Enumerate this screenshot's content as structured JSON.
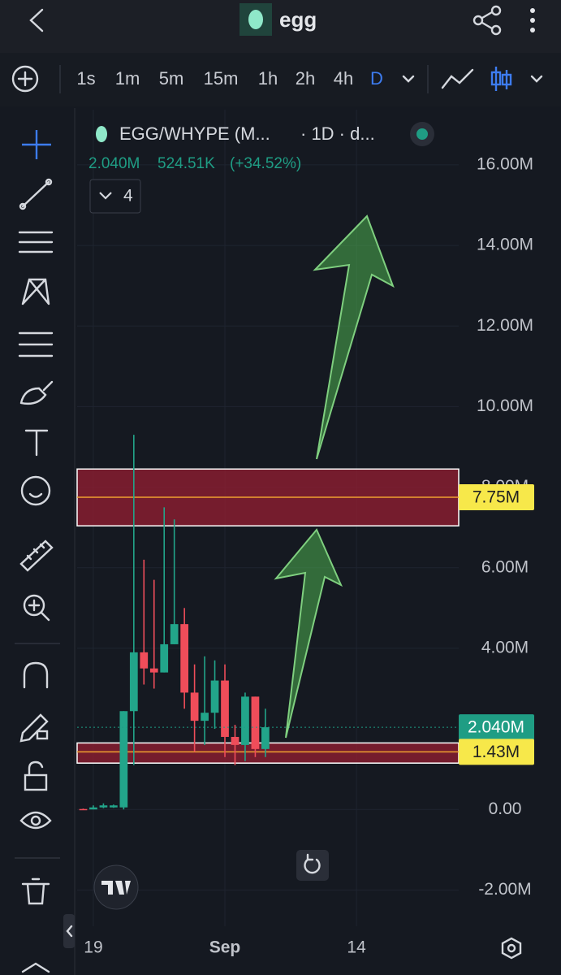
{
  "header": {
    "title": "egg"
  },
  "timeframes": [
    "1s",
    "1m",
    "5m",
    "15m",
    "1h",
    "2h",
    "4h",
    "D"
  ],
  "legend": {
    "symbol": "EGG/WHYPE (M...",
    "interval": "· 1D · d...",
    "price": "2.040M",
    "volume": "524.51K",
    "change": "(+34.52%)",
    "indicators": 4
  },
  "chart_data": {
    "type": "candlestick",
    "x": [
      -1,
      0,
      1,
      2,
      3,
      4,
      5,
      6,
      7,
      8,
      9,
      10,
      11,
      12,
      13,
      14,
      15,
      16,
      17
    ],
    "open": [
      0.01,
      0,
      0.05,
      0.05,
      0.05,
      2.44,
      3.9,
      3.5,
      3.4,
      4.1,
      4.6,
      2.9,
      2.2,
      2.4,
      3.2,
      1.8,
      1.6,
      2.8,
      1.5
    ],
    "high": [
      0.02,
      0.1,
      0.15,
      0.12,
      2.44,
      9.3,
      6.2,
      5.7,
      7.5,
      7.2,
      5.0,
      3.6,
      3.8,
      3.7,
      3.6,
      2.1,
      2.9,
      2.8,
      2.5
    ],
    "low": [
      0,
      0,
      0.03,
      0.04,
      0,
      1.1,
      3.1,
      3.0,
      3.4,
      4.1,
      2.5,
      1.43,
      1.6,
      2.0,
      1.3,
      1.1,
      1.2,
      1.3,
      1.3
    ],
    "close": [
      0,
      0.05,
      0.1,
      0.1,
      2.44,
      3.9,
      3.5,
      3.4,
      4.1,
      4.6,
      2.9,
      2.2,
      2.4,
      3.2,
      1.8,
      1.6,
      2.8,
      1.5,
      2.04
    ],
    "up_color": "#22a58a",
    "down_color": "#ef4d5a",
    "xlim": [
      -1.6,
      36.1
    ],
    "xticks": [
      {
        "value": 0,
        "label": "19"
      },
      {
        "value": 13,
        "label": "Sep"
      },
      {
        "value": 26,
        "label": "14"
      }
    ],
    "ylim": [
      -2.9,
      17.37
    ],
    "yticks": [
      {
        "value": -2,
        "label": "-2.00M"
      },
      {
        "value": 0,
        "label": "0.00"
      },
      {
        "value": 4,
        "label": "4.00M"
      },
      {
        "value": 6,
        "label": "6.00M"
      },
      {
        "value": 8,
        "label": "8.00M"
      },
      {
        "value": 10,
        "label": "10.00M"
      },
      {
        "value": 12,
        "label": "12.00M"
      },
      {
        "value": 14,
        "label": "14.00M"
      },
      {
        "value": 16,
        "label": "16.00M"
      }
    ],
    "grid": true,
    "zones": [
      {
        "from": 7.04,
        "to": 8.45,
        "level": 7.75
      },
      {
        "from": 1.15,
        "to": 1.65,
        "level": 1.43
      }
    ],
    "price_lines": [
      {
        "value": 7.75,
        "label": "7.75M",
        "color": "#f7e84a"
      },
      {
        "value": 2.04,
        "label": "2.040M",
        "color": "#1f9d84"
      },
      {
        "value": 1.43,
        "label": "1.43M",
        "color": "#f7e84a"
      }
    ]
  }
}
